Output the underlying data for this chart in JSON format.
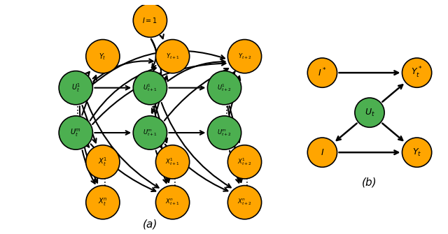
{
  "green_color": "#4CAF50",
  "orange_color": "#FFA500",
  "bg_color": "white",
  "label_a": "(a)",
  "label_b": "(b)"
}
